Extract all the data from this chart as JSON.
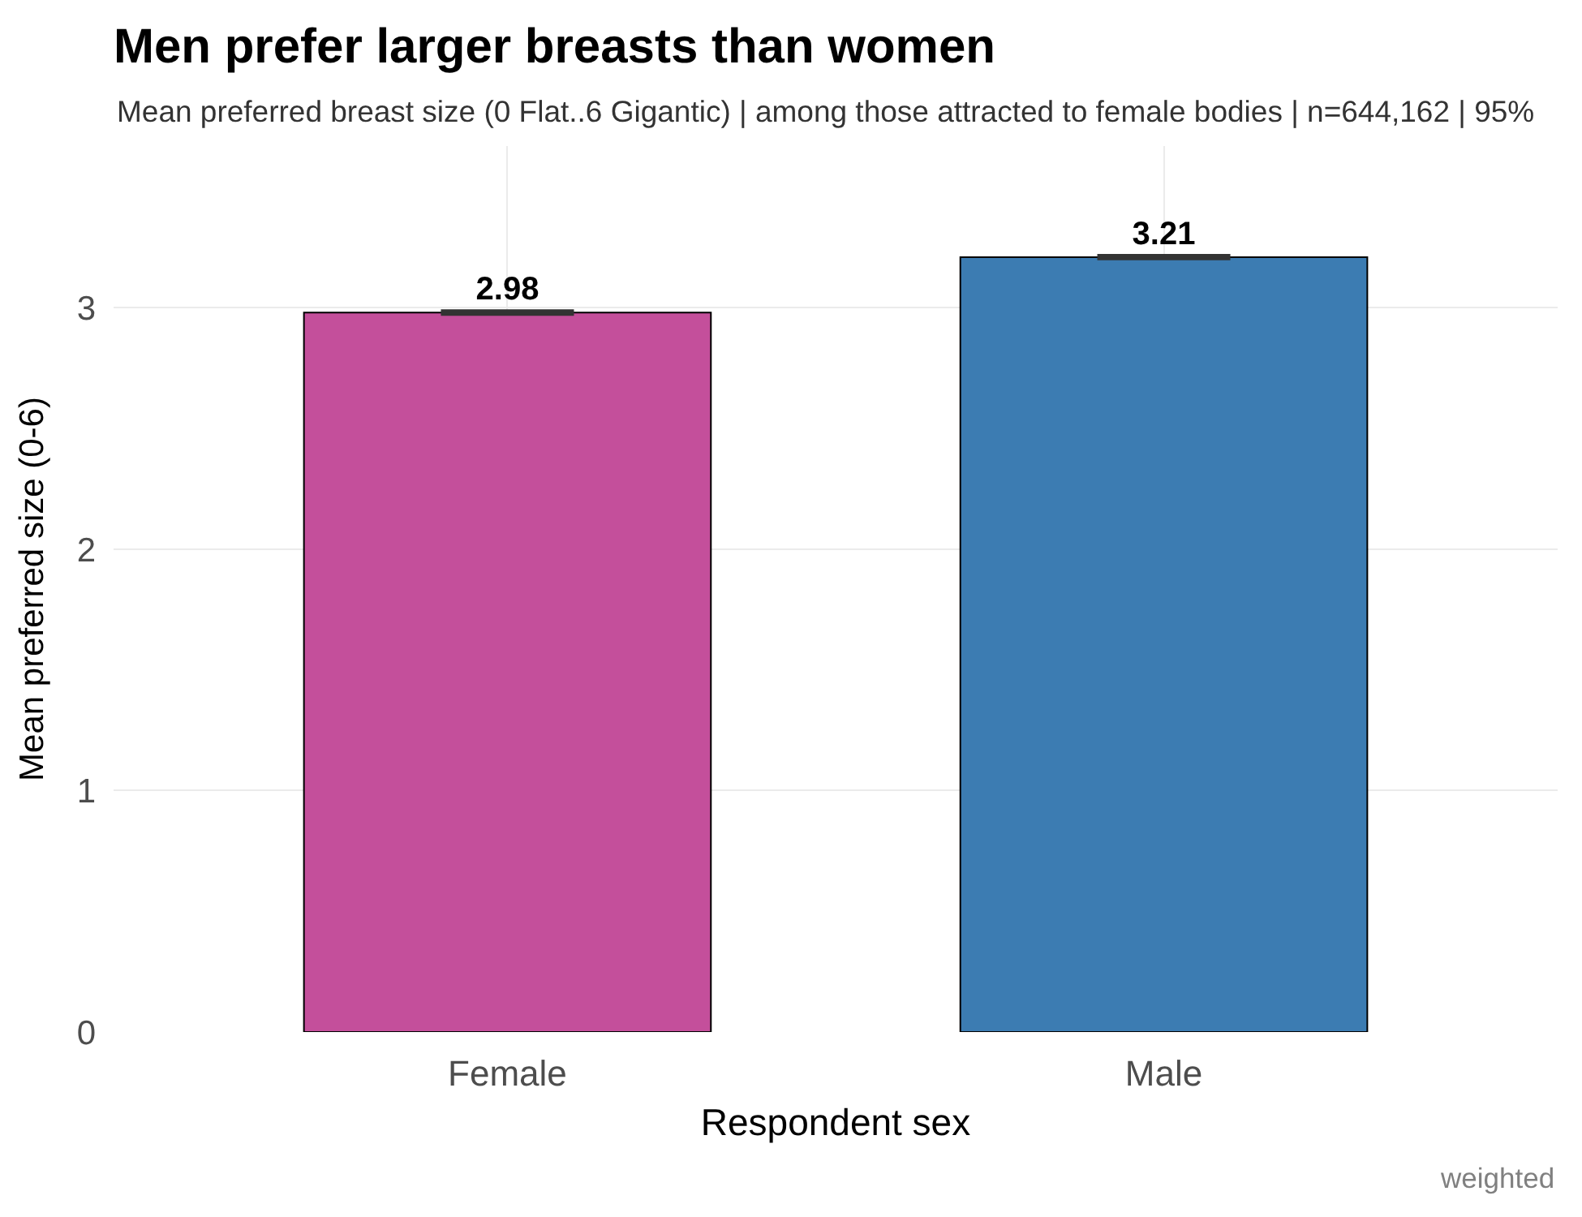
{
  "chart_data": {
    "type": "bar",
    "title": "Men prefer larger breasts than women",
    "subtitle": "Mean preferred breast size (0 Flat..6 Gigantic) | among those attracted to female bodies | n=644,162 | 95%",
    "xlabel": "Respondent sex",
    "ylabel": "Mean preferred size (0-6)",
    "categories": [
      "Female",
      "Male"
    ],
    "values": [
      2.98,
      3.21
    ],
    "colors": [
      "#c44f9b",
      "#3c7cb2"
    ],
    "errors": [
      0.005,
      0.005
    ],
    "ylim": [
      0,
      3.67
    ],
    "yticks": [
      0,
      1,
      2,
      3
    ],
    "grid": true,
    "data_labels": true,
    "annotations": [
      "weighted"
    ]
  }
}
